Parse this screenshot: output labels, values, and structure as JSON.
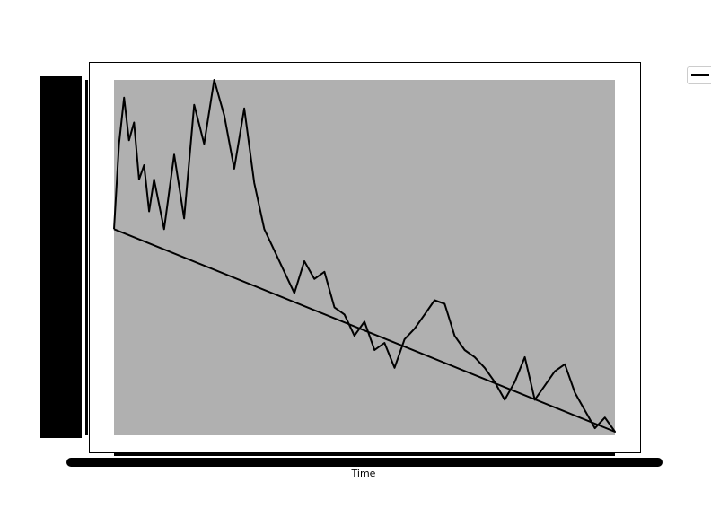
{
  "chart_data": {
    "type": "line",
    "title": "",
    "xlabel": "Time",
    "ylabel": "",
    "xlim": [
      0,
      1
    ],
    "ylim": [
      0,
      1
    ],
    "grid": false,
    "legend_position": "outside-top-right",
    "background": "#b0b0b0",
    "series": [
      {
        "color": "#000000",
        "x": [
          0,
          0.01,
          0.02,
          0.03,
          0.04,
          0.05,
          0.06,
          0.07,
          0.08,
          0.1,
          0.12,
          0.14,
          0.16,
          0.18,
          0.2,
          0.22,
          0.24,
          0.26,
          0.28,
          0.3,
          0.32,
          0.34,
          0.36,
          0.38,
          0.4,
          0.42,
          0.44,
          0.46,
          0.48,
          0.5,
          0.52,
          0.54,
          0.56,
          0.58,
          0.6,
          0.62,
          0.64,
          0.66,
          0.68,
          0.7,
          0.72,
          0.74,
          0.76,
          0.78,
          0.8,
          0.82,
          0.84,
          0.86,
          0.88,
          0.9,
          0.92,
          0.94,
          0.96,
          0.98,
          1.0,
          0.0
        ],
        "y": [
          0.58,
          0.82,
          0.95,
          0.83,
          0.88,
          0.72,
          0.76,
          0.63,
          0.72,
          0.58,
          0.79,
          0.61,
          0.93,
          0.82,
          1.0,
          0.9,
          0.75,
          0.92,
          0.71,
          0.58,
          0.52,
          0.46,
          0.4,
          0.49,
          0.44,
          0.46,
          0.36,
          0.34,
          0.28,
          0.32,
          0.24,
          0.26,
          0.19,
          0.27,
          0.3,
          0.34,
          0.38,
          0.37,
          0.28,
          0.24,
          0.22,
          0.19,
          0.15,
          0.1,
          0.15,
          0.22,
          0.1,
          0.14,
          0.18,
          0.2,
          0.12,
          0.07,
          0.02,
          0.05,
          0.01,
          0.58
        ]
      }
    ]
  }
}
